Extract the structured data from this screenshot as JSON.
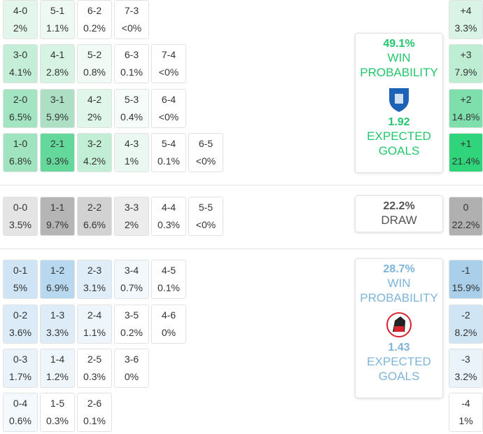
{
  "sections": [
    {
      "name": "home",
      "accent": "#22c66d",
      "rows": [
        [
          {
            "score": "4-0",
            "pct": "2%",
            "color": "#e3f6ec"
          },
          {
            "score": "5-1",
            "pct": "1.1%",
            "color": "#eef9f3"
          },
          {
            "score": "6-2",
            "pct": "0.2%",
            "color": "#ffffff"
          },
          {
            "score": "7-3",
            "pct": "<0%",
            "color": "#ffffff"
          }
        ],
        [
          {
            "score": "3-0",
            "pct": "4.1%",
            "color": "#c4eed7"
          },
          {
            "score": "4-1",
            "pct": "2.8%",
            "color": "#d6f3e3"
          },
          {
            "score": "5-2",
            "pct": "0.8%",
            "color": "#f1faf5"
          },
          {
            "score": "6-3",
            "pct": "0.1%",
            "color": "#ffffff"
          },
          {
            "score": "7-4",
            "pct": "<0%",
            "color": "#ffffff"
          }
        ],
        [
          {
            "score": "2-0",
            "pct": "6.5%",
            "color": "#a3e5c2"
          },
          {
            "score": "3-1",
            "pct": "5.9%",
            "color": "#addfc4"
          },
          {
            "score": "4-2",
            "pct": "2%",
            "color": "#e0f6ea"
          },
          {
            "score": "5-3",
            "pct": "0.4%",
            "color": "#f6fcf9"
          },
          {
            "score": "6-4",
            "pct": "<0%",
            "color": "#ffffff"
          }
        ],
        [
          {
            "score": "1-0",
            "pct": "6.8%",
            "color": "#9fe4bf"
          },
          {
            "score": "2-1",
            "pct": "9.3%",
            "color": "#64d79a"
          },
          {
            "score": "3-2",
            "pct": "4.2%",
            "color": "#c2eed6"
          },
          {
            "score": "4-3",
            "pct": "1%",
            "color": "#ebf8f1"
          },
          {
            "score": "5-4",
            "pct": "0.1%",
            "color": "#ffffff"
          },
          {
            "score": "6-5",
            "pct": "<0%",
            "color": "#ffffff"
          }
        ]
      ],
      "diff": [
        {
          "label": "+4",
          "pct": "3.3%",
          "color": "#d9f4e6"
        },
        {
          "label": "+3",
          "pct": "7.9%",
          "color": "#bdeed3"
        },
        {
          "label": "+2",
          "pct": "14.8%",
          "color": "#7fdfac"
        },
        {
          "label": "+1",
          "pct": "21.4%",
          "color": "#2fd47b"
        }
      ],
      "card": {
        "value": "49.1%",
        "title": "WIN PROBABILITY",
        "xg": "1.92",
        "xg_label": "EXPECTED GOALS"
      }
    },
    {
      "name": "draw",
      "accent": "#555555",
      "rows": [
        [
          {
            "score": "0-0",
            "pct": "3.5%",
            "color": "#e4e4e4"
          },
          {
            "score": "1-1",
            "pct": "9.7%",
            "color": "#b5b5b5"
          },
          {
            "score": "2-2",
            "pct": "6.6%",
            "color": "#d2d2d2"
          },
          {
            "score": "3-3",
            "pct": "2%",
            "color": "#ececec"
          },
          {
            "score": "4-4",
            "pct": "0.3%",
            "color": "#ffffff"
          },
          {
            "score": "5-5",
            "pct": "<0%",
            "color": "#ffffff"
          }
        ]
      ],
      "diff": [
        {
          "label": "0",
          "pct": "22.2%",
          "color": "#b0b0b0"
        }
      ],
      "card": {
        "value": "22.2%",
        "title": "DRAW"
      }
    },
    {
      "name": "away",
      "accent": "#7fb4da",
      "rows": [
        [
          {
            "score": "0-1",
            "pct": "5%",
            "color": "#cfe4f4"
          },
          {
            "score": "1-2",
            "pct": "6.9%",
            "color": "#b8d8ef"
          },
          {
            "score": "2-3",
            "pct": "3.1%",
            "color": "#deedf8"
          },
          {
            "score": "3-4",
            "pct": "0.7%",
            "color": "#f2f8fc"
          },
          {
            "score": "4-5",
            "pct": "0.1%",
            "color": "#ffffff"
          }
        ],
        [
          {
            "score": "0-2",
            "pct": "3.6%",
            "color": "#dbebf7"
          },
          {
            "score": "1-3",
            "pct": "3.3%",
            "color": "#ddecf7"
          },
          {
            "score": "2-4",
            "pct": "1.1%",
            "color": "#eff6fb"
          },
          {
            "score": "3-5",
            "pct": "0.2%",
            "color": "#ffffff"
          },
          {
            "score": "4-6",
            "pct": "0%",
            "color": "#ffffff"
          }
        ],
        [
          {
            "score": "0-3",
            "pct": "1.7%",
            "color": "#eaf3fa"
          },
          {
            "score": "1-4",
            "pct": "1.2%",
            "color": "#eef5fb"
          },
          {
            "score": "2-5",
            "pct": "0.3%",
            "color": "#ffffff"
          },
          {
            "score": "3-6",
            "pct": "0%",
            "color": "#ffffff"
          }
        ],
        [
          {
            "score": "0-4",
            "pct": "0.6%",
            "color": "#f4f9fd"
          },
          {
            "score": "1-5",
            "pct": "0.3%",
            "color": "#ffffff"
          },
          {
            "score": "2-6",
            "pct": "0.1%",
            "color": "#ffffff"
          }
        ]
      ],
      "diff": [
        {
          "label": "-1",
          "pct": "15.9%",
          "color": "#a9cfea"
        },
        {
          "label": "-2",
          "pct": "8.2%",
          "color": "#d0e5f4"
        },
        {
          "label": "-3",
          "pct": "3.2%",
          "color": "#eaf3fa"
        },
        {
          "label": "-4",
          "pct": "1%",
          "color": "#ffffff"
        }
      ],
      "card": {
        "value": "28.7%",
        "title": "WIN PROBABILITY",
        "xg": "1.43",
        "xg_label": "EXPECTED GOALS"
      }
    }
  ]
}
